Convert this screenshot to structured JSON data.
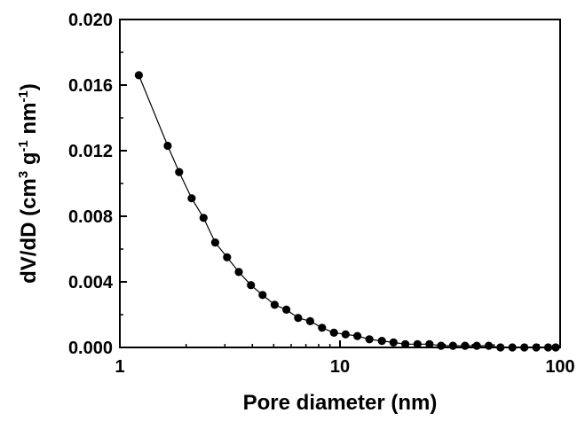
{
  "chart_data": {
    "type": "line",
    "markers": true,
    "x_scale": "log",
    "xlabel": "Pore diameter (nm)",
    "ylabel": {
      "prefix": "dV/dD (cm",
      "sup1": "3",
      "mid1": " g",
      "sup2": "-1",
      "mid2": " nm",
      "sup3": "-1",
      "suffix": ")"
    },
    "xlim": [
      1,
      100
    ],
    "ylim": [
      0,
      0.02
    ],
    "x_ticks": [
      {
        "value": 1,
        "label": "1"
      },
      {
        "value": 10,
        "label": "10"
      },
      {
        "value": 100,
        "label": "100"
      }
    ],
    "y_ticks": [
      {
        "value": 0.0,
        "label": "0.000"
      },
      {
        "value": 0.004,
        "label": "0.004"
      },
      {
        "value": 0.008,
        "label": "0.008"
      },
      {
        "value": 0.012,
        "label": "0.012"
      },
      {
        "value": 0.016,
        "label": "0.016"
      },
      {
        "value": 0.02,
        "label": "0.020"
      }
    ],
    "grid": false,
    "series": [
      {
        "color": "#000000",
        "x": [
          1.22,
          1.65,
          1.86,
          2.12,
          2.4,
          2.71,
          3.07,
          3.47,
          3.94,
          4.45,
          5.05,
          5.71,
          6.46,
          7.32,
          8.29,
          9.39,
          10.6,
          12.0,
          13.6,
          15.5,
          17.5,
          19.8,
          22.5,
          25.5,
          28.8,
          32.6,
          37.0,
          41.8,
          47.4,
          53.6,
          60.7,
          68.8,
          77.9,
          88.2,
          95.5
        ],
        "y": [
          0.0166,
          0.0123,
          0.0107,
          0.0091,
          0.0079,
          0.0064,
          0.0055,
          0.0046,
          0.0038,
          0.0032,
          0.0026,
          0.0023,
          0.0018,
          0.0016,
          0.0012,
          0.0009,
          0.0008,
          0.0007,
          0.0005,
          0.0004,
          0.0003,
          0.0002,
          0.0002,
          0.0002,
          0.0001,
          0.0001,
          0.0001,
          0.0001,
          0.0001,
          0.0,
          0.0,
          0.0,
          0.0,
          0.0,
          0.0
        ]
      }
    ]
  }
}
